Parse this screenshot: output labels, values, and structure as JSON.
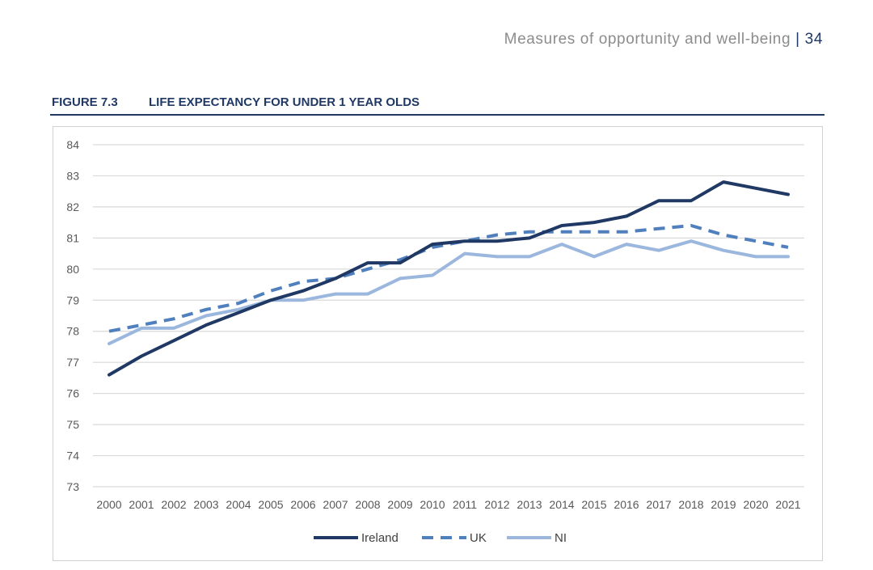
{
  "header": {
    "text": "Measures of opportunity and well-being",
    "separator": "|",
    "page_number": "34"
  },
  "figure": {
    "label": "FIGURE 7.3",
    "title": "LIFE EXPECTANCY FOR UNDER 1 YEAR OLDS"
  },
  "chart_data": {
    "type": "line",
    "title": "LIFE EXPECTANCY FOR UNDER 1 YEAR OLDS",
    "xlabel": "",
    "ylabel": "",
    "ylim": [
      73,
      84
    ],
    "yticks": [
      73,
      74,
      75,
      76,
      77,
      78,
      79,
      80,
      81,
      82,
      83,
      84
    ],
    "grid": true,
    "legend_position": "bottom",
    "categories": [
      "2000",
      "2001",
      "2002",
      "2003",
      "2004",
      "2005",
      "2006",
      "2007",
      "2008",
      "2009",
      "2010",
      "2011",
      "2012",
      "2013",
      "2014",
      "2015",
      "2016",
      "2017",
      "2018",
      "2019",
      "2020",
      "2021"
    ],
    "series": [
      {
        "name": "Ireland",
        "color": "#1f3864",
        "style": "solid",
        "values": [
          76.6,
          77.2,
          77.7,
          78.2,
          78.6,
          79.0,
          79.3,
          79.7,
          80.2,
          80.2,
          80.8,
          80.9,
          80.9,
          81.0,
          81.4,
          81.5,
          81.7,
          82.2,
          82.2,
          82.8,
          82.6,
          82.4
        ]
      },
      {
        "name": "UK",
        "color": "#4f7fbd",
        "style": "dashed",
        "values": [
          78.0,
          78.2,
          78.4,
          78.7,
          78.9,
          79.3,
          79.6,
          79.7,
          80.0,
          80.3,
          80.7,
          80.9,
          81.1,
          81.2,
          81.2,
          81.2,
          81.2,
          81.3,
          81.4,
          81.1,
          80.9,
          80.7
        ]
      },
      {
        "name": "NI",
        "color": "#9bb7dd",
        "style": "solid",
        "values": [
          77.6,
          78.1,
          78.1,
          78.5,
          78.7,
          79.0,
          79.0,
          79.2,
          79.2,
          79.7,
          79.8,
          80.5,
          80.4,
          80.4,
          80.8,
          80.4,
          80.8,
          80.6,
          80.9,
          80.6,
          80.4,
          80.4
        ]
      }
    ]
  }
}
